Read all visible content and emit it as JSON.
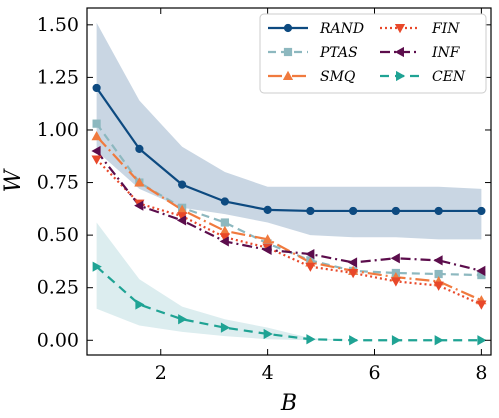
{
  "chart_data": {
    "type": "line",
    "xlabel": "B",
    "ylabel": "W",
    "xlim": [
      0.62,
      8.18
    ],
    "ylim": [
      -0.07,
      1.58
    ],
    "xticks": [
      2,
      4,
      6,
      8
    ],
    "xtick_labels": [
      "2",
      "4",
      "6",
      "8"
    ],
    "yticks": [
      0.0,
      0.25,
      0.5,
      0.75,
      1.0,
      1.25,
      1.5
    ],
    "ytick_labels": [
      "0.00",
      "0.25",
      "0.50",
      "0.75",
      "1.00",
      "1.25",
      "1.50"
    ],
    "grid": false,
    "legend_position": "top-right",
    "x": [
      0.8,
      1.6,
      2.4,
      3.2,
      4.0,
      4.8,
      5.6,
      6.4,
      7.2,
      8.0
    ],
    "bands": [
      {
        "series": "RAND",
        "color": "#c9d6e3",
        "lower": [
          0.9,
          0.72,
          0.63,
          0.6,
          0.56,
          0.5,
          0.49,
          0.49,
          0.48,
          0.48
        ],
        "upper": [
          1.51,
          1.14,
          0.92,
          0.8,
          0.73,
          0.73,
          0.73,
          0.73,
          0.73,
          0.72
        ]
      },
      {
        "series": "CEN",
        "color": "#dcedef",
        "lower": [
          0.15,
          0.07,
          0.04,
          0.02,
          0.005,
          0.0,
          0.0,
          0.0,
          0.0,
          0.0
        ],
        "upper": [
          0.56,
          0.29,
          0.16,
          0.1,
          0.06,
          0.01,
          0.0,
          0.0,
          0.0,
          0.0
        ]
      }
    ],
    "series": [
      {
        "name": "RAND",
        "color": "#0d4a80",
        "dash": "",
        "marker": "circle",
        "values": [
          1.2,
          0.91,
          0.74,
          0.66,
          0.62,
          0.615,
          0.615,
          0.615,
          0.615,
          0.615
        ]
      },
      {
        "name": "PTAS",
        "color": "#8db8bf",
        "dash": "8,5",
        "marker": "square",
        "values": [
          1.03,
          0.75,
          0.63,
          0.56,
          0.46,
          0.38,
          0.33,
          0.32,
          0.315,
          0.31
        ]
      },
      {
        "name": "SMQ",
        "color": "#f07a3e",
        "dash": "14,4,2,4",
        "marker": "triangle-up",
        "values": [
          0.97,
          0.75,
          0.62,
          0.52,
          0.48,
          0.37,
          0.33,
          0.3,
          0.28,
          0.19
        ]
      },
      {
        "name": "FIN",
        "color": "#e8482a",
        "dash": "2,3",
        "marker": "triangle-down",
        "values": [
          0.86,
          0.65,
          0.59,
          0.49,
          0.44,
          0.35,
          0.32,
          0.28,
          0.26,
          0.17
        ]
      },
      {
        "name": "INF",
        "color": "#5c0d4c",
        "dash": "10,4,2,4",
        "marker": "triangle-left",
        "values": [
          0.9,
          0.64,
          0.57,
          0.47,
          0.43,
          0.41,
          0.37,
          0.39,
          0.38,
          0.33
        ]
      },
      {
        "name": "CEN",
        "color": "#1fa394",
        "dash": "9,6",
        "marker": "triangle-right",
        "values": [
          0.35,
          0.17,
          0.1,
          0.06,
          0.03,
          0.005,
          0.0,
          0.0,
          0.0,
          0.0
        ]
      }
    ]
  }
}
